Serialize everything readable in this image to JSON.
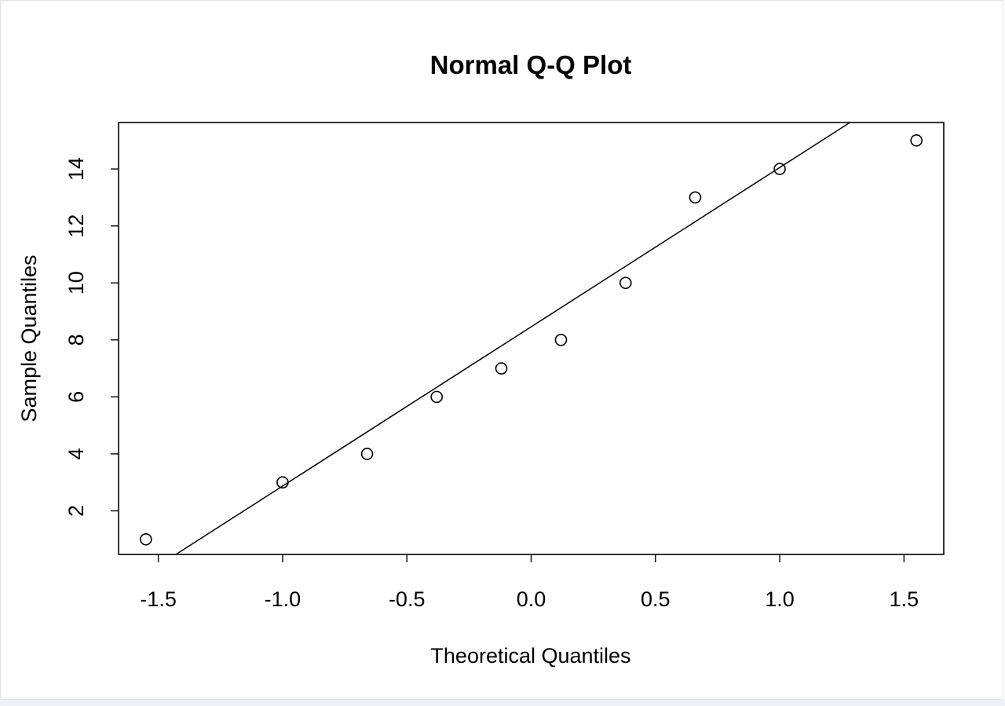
{
  "chart_data": {
    "type": "scatter",
    "title": "Normal Q-Q Plot",
    "xlabel": "Theoretical Quantiles",
    "ylabel": "Sample Quantiles",
    "xlim": [
      -1.66,
      1.66
    ],
    "ylim": [
      0.47,
      15.63
    ],
    "x_ticks": [
      -1.5,
      -1.0,
      -0.5,
      0.0,
      0.5,
      1.0,
      1.5
    ],
    "x_tick_labels": [
      "-1.5",
      "-1.0",
      "-0.5",
      "0.0",
      "0.5",
      "1.0",
      "1.5"
    ],
    "y_ticks": [
      2,
      4,
      6,
      8,
      10,
      12,
      14
    ],
    "y_tick_labels": [
      "2",
      "4",
      "6",
      "8",
      "10",
      "12",
      "14"
    ],
    "points": [
      {
        "x": -1.55,
        "y": 1
      },
      {
        "x": -1.0,
        "y": 3
      },
      {
        "x": -0.66,
        "y": 4
      },
      {
        "x": -0.38,
        "y": 6
      },
      {
        "x": -0.12,
        "y": 7
      },
      {
        "x": 0.12,
        "y": 8
      },
      {
        "x": 0.38,
        "y": 10
      },
      {
        "x": 0.66,
        "y": 13
      },
      {
        "x": 1.0,
        "y": 14
      },
      {
        "x": 1.55,
        "y": 15
      }
    ],
    "reference_line": {
      "intercept": 8.46,
      "slope": 5.59
    },
    "grid": false
  }
}
